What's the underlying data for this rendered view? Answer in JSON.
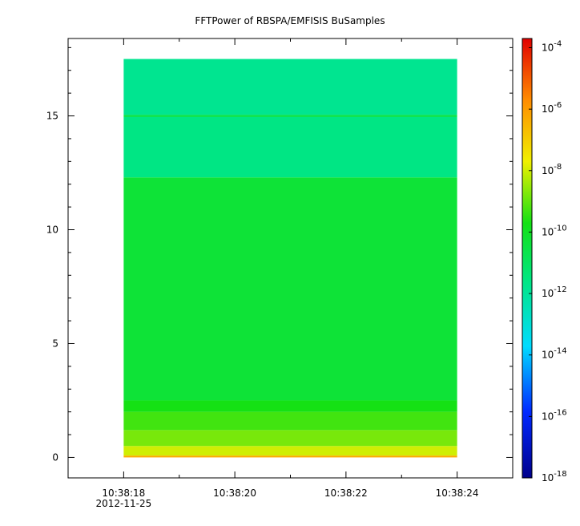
{
  "chart_data": {
    "type": "heatmap",
    "title": "FFTPower of RBSPA/EMFISIS  BuSamples",
    "xlabel": "",
    "ylabel": "",
    "x_ticks": [
      {
        "t": 18.0,
        "label": "10:38:18",
        "sublabel": "2012-11-25"
      },
      {
        "t": 20.0,
        "label": "10:38:20",
        "sublabel": ""
      },
      {
        "t": 22.0,
        "label": "10:38:22",
        "sublabel": ""
      },
      {
        "t": 24.0,
        "label": "10:38:24",
        "sublabel": ""
      }
    ],
    "x_minor_ticks": [
      17.0,
      19.0,
      21.0,
      23.0,
      25.0
    ],
    "xlim": [
      17.0,
      25.0
    ],
    "data_x_range": [
      18.0,
      24.0
    ],
    "y_ticks": [
      0,
      5,
      10,
      15
    ],
    "ylim": [
      -0.9,
      18.4
    ],
    "data_y_range": [
      0,
      17.5
    ],
    "colorbar": {
      "scale": "log",
      "range": [
        -18,
        -3.7
      ],
      "ticks": [
        {
          "exp": -4,
          "label": "-4"
        },
        {
          "exp": -6,
          "label": "-6"
        },
        {
          "exp": -8,
          "label": "-8"
        },
        {
          "exp": -10,
          "label": "-10"
        },
        {
          "exp": -12,
          "label": "-12"
        },
        {
          "exp": -14,
          "label": "-14"
        },
        {
          "exp": -16,
          "label": "-16"
        },
        {
          "exp": -18,
          "label": "-18"
        }
      ],
      "tick_base": "10"
    },
    "bands": [
      {
        "y_range": [
          0,
          0.08
        ],
        "log10_power": -6.3
      },
      {
        "y_range": [
          0.08,
          0.5
        ],
        "log10_power": -8.0
      },
      {
        "y_range": [
          0.5,
          1.2
        ],
        "log10_power": -8.8
      },
      {
        "y_range": [
          1.2,
          2.0
        ],
        "log10_power": -9.3
      },
      {
        "y_range": [
          2.0,
          2.5
        ],
        "log10_power": -9.7
      },
      {
        "y_range": [
          2.5,
          12.3
        ],
        "log10_power": -10.3
      },
      {
        "y_range": [
          12.3,
          14.95
        ],
        "log10_power": -11.6
      },
      {
        "y_range": [
          14.95,
          15.05
        ],
        "log10_power": -10.6
      },
      {
        "y_range": [
          15.05,
          17.5
        ],
        "log10_power": -11.8
      }
    ]
  }
}
